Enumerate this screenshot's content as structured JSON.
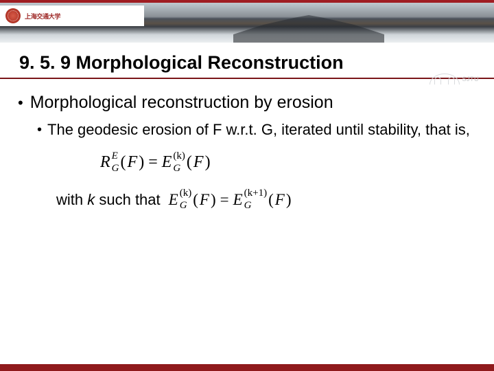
{
  "header": {
    "logo_text": "上海交通大学",
    "watermark_label": "SJTU"
  },
  "title": "9. 5. 9 Morphological Reconstruction",
  "bullets": {
    "l1": "Morphological reconstruction by erosion",
    "l2": "The geodesic erosion of F w.r.t. G, iterated until stability, that is,"
  },
  "formula1": {
    "R": "R",
    "E_sup": "E",
    "G_sub": "G",
    "open": "(",
    "F": "F",
    "close": ")",
    "eq": "=",
    "E": "E",
    "k_sup": "(k)",
    "G2_sub": "G",
    "open2": "(",
    "F2": "F",
    "close2": ")"
  },
  "line2": {
    "prefix": "with ",
    "k": "k",
    "suffix": " such that"
  },
  "formula2": {
    "E": "E",
    "k_sup": "(k)",
    "G_sub": "G",
    "open": "(",
    "F": "F",
    "close": ")",
    "eq": "=",
    "E2": "E",
    "k1_sup": "(k+1)",
    "G2_sub": "G",
    "open2": "(",
    "F2": "F",
    "close2": ")"
  },
  "colors": {
    "accent": "#8f1a1c",
    "title_underline": "#7a1518",
    "text": "#000000",
    "background": "#ffffff"
  }
}
